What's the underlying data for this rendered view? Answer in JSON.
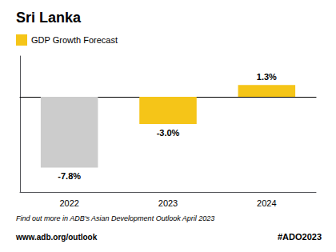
{
  "chart_data": {
    "type": "bar",
    "title": "Sri Lanka",
    "categories": [
      "2022",
      "2023",
      "2024"
    ],
    "series": [
      {
        "name": "GDP Growth Forecast",
        "color": "#F5C518",
        "values": [
          -7.8,
          -3.0,
          1.3
        ],
        "value_labels": [
          "-7.8%",
          "-3.0%",
          "1.3%"
        ],
        "colors": [
          "#CCCCCC",
          "#F5C518",
          "#F5C518"
        ]
      }
    ],
    "ylim": [
      -10.5,
      4.5
    ],
    "grid": false,
    "tick_labels": "x",
    "data_labels": true,
    "legend": "upper left",
    "annotations": [
      "Find out more in ADB's Asian Development Outlook April 2023",
      "www.adb.org/outlook",
      "#ADO2023"
    ]
  }
}
